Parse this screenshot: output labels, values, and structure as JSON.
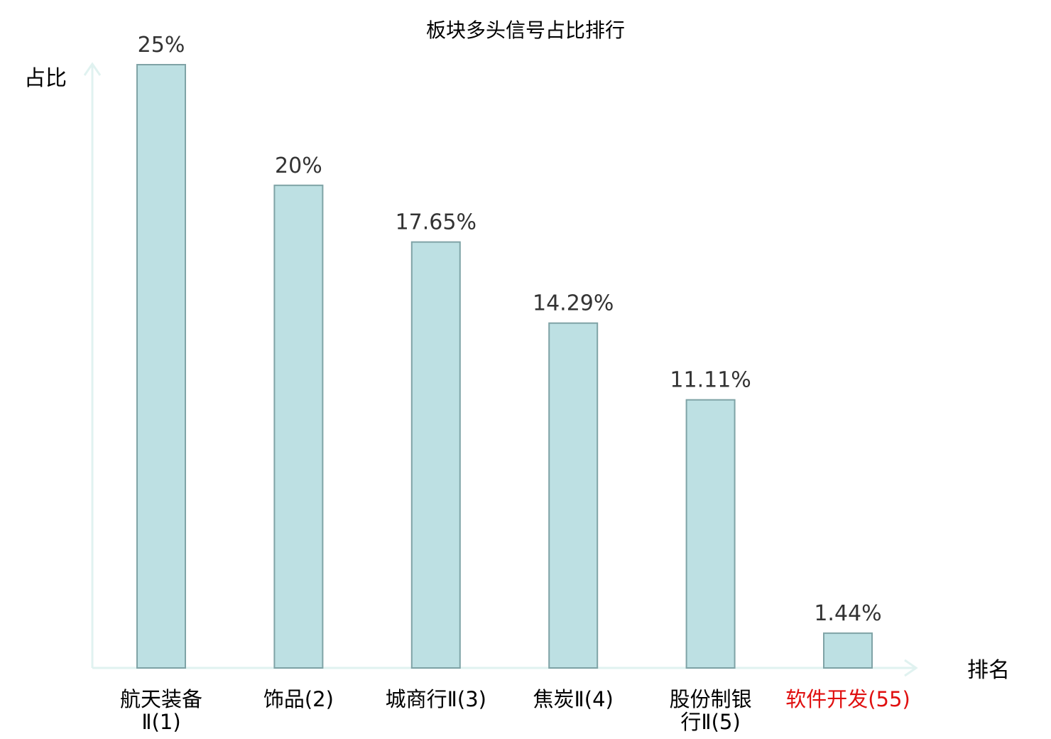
{
  "chart_data": {
    "type": "bar",
    "title": "板块多头信号占比排行",
    "ylabel": "占比",
    "xlabel": "排名",
    "ylim": [
      0,
      25
    ],
    "grid": false,
    "categories": [
      {
        "lines": [
          "航天装备",
          "Ⅱ(1)"
        ],
        "highlight": false
      },
      {
        "lines": [
          "饰品(2)"
        ],
        "highlight": false
      },
      {
        "lines": [
          "城商行Ⅱ(3)"
        ],
        "highlight": false
      },
      {
        "lines": [
          "焦炭Ⅱ(4)"
        ],
        "highlight": false
      },
      {
        "lines": [
          "股份制银",
          "行Ⅱ(5)"
        ],
        "highlight": false
      },
      {
        "lines": [
          "软件开发(55)"
        ],
        "highlight": true
      }
    ],
    "values": [
      25,
      20,
      17.65,
      14.29,
      11.11,
      1.44
    ],
    "value_labels": [
      "25%",
      "20%",
      "17.65%",
      "14.29%",
      "11.11%",
      "1.44%"
    ],
    "colors": {
      "bar_fill": "#bde0e3",
      "bar_stroke": "#7fa3a6",
      "axis": "#e0f2f0",
      "highlight_text": "#e01010"
    }
  }
}
